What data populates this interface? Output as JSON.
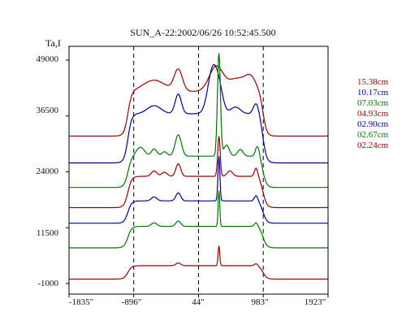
{
  "chart_data": {
    "type": "line",
    "title": "SUN_A-22:2002/06/26 10:52:45.500",
    "ylabel": "Ta,I",
    "xlabel": "",
    "y_ticks": [
      "49000",
      "36500",
      "24000",
      "11500",
      "-1000"
    ],
    "x_ticks": [
      "-1835\"",
      "-896\"",
      "44\"",
      "983\"",
      "1923\""
    ],
    "xlim": [
      -1835,
      1923
    ],
    "ylim": [
      -1000,
      49000
    ],
    "dashed_reference_lines_x": [
      -896,
      44,
      983
    ],
    "grid": false,
    "legend_position": "right",
    "series": [
      {
        "name": "15.38cm",
        "color": "#990000",
        "baseline": 32000,
        "limb_step": 10000,
        "peaks": [
          [
            -600,
            2500,
            160
          ],
          [
            -250,
            4800,
            60
          ],
          [
            300,
            5600,
            100
          ],
          [
            600,
            2800,
            120
          ],
          [
            800,
            3000,
            80
          ]
        ]
      },
      {
        "name": "10.17cm",
        "color": "#000099",
        "baseline": 26000,
        "limb_step": 11000,
        "peaks": [
          [
            -600,
            1800,
            100
          ],
          [
            -250,
            4400,
            45
          ],
          [
            250,
            10000,
            70
          ],
          [
            350,
            4000,
            55
          ],
          [
            580,
            1500,
            70
          ],
          [
            880,
            2500,
            40
          ]
        ]
      },
      {
        "name": "07.03cm",
        "color": "#007700",
        "baseline": 20500,
        "limb_step": 7000,
        "peaks": [
          [
            -800,
            2000,
            60
          ],
          [
            -600,
            1600,
            40
          ],
          [
            -450,
            1000,
            40
          ],
          [
            -250,
            4800,
            45
          ],
          [
            340,
            23000,
            22
          ],
          [
            450,
            2500,
            40
          ],
          [
            650,
            1500,
            40
          ],
          [
            900,
            2500,
            30
          ]
        ]
      },
      {
        "name": "04.93cm",
        "color": "#990000",
        "baseline": 16000,
        "limb_step": 7000,
        "peaks": [
          [
            -600,
            1200,
            40
          ],
          [
            -450,
            900,
            40
          ],
          [
            -250,
            2800,
            35
          ],
          [
            340,
            9000,
            18
          ],
          [
            500,
            1200,
            40
          ],
          [
            880,
            2000,
            25
          ]
        ]
      },
      {
        "name": "02.90cm",
        "color": "#000099",
        "baseline": 12500,
        "limb_step": 5000,
        "peaks": [
          [
            -600,
            900,
            40
          ],
          [
            -250,
            1800,
            35
          ],
          [
            340,
            10000,
            14
          ],
          [
            880,
            1300,
            25
          ]
        ]
      },
      {
        "name": "02.67cm",
        "color": "#007700",
        "baseline": 7000,
        "limb_step": 4800,
        "peaks": [
          [
            -600,
            800,
            40
          ],
          [
            -250,
            1200,
            35
          ],
          [
            340,
            8000,
            12
          ],
          [
            880,
            900,
            25
          ]
        ]
      },
      {
        "name": "02.24cm",
        "color": "#990000",
        "baseline": 0,
        "limb_step": 3000,
        "peaks": [
          [
            -250,
            600,
            35
          ],
          [
            340,
            4500,
            12
          ],
          [
            880,
            500,
            25
          ]
        ]
      }
    ]
  }
}
